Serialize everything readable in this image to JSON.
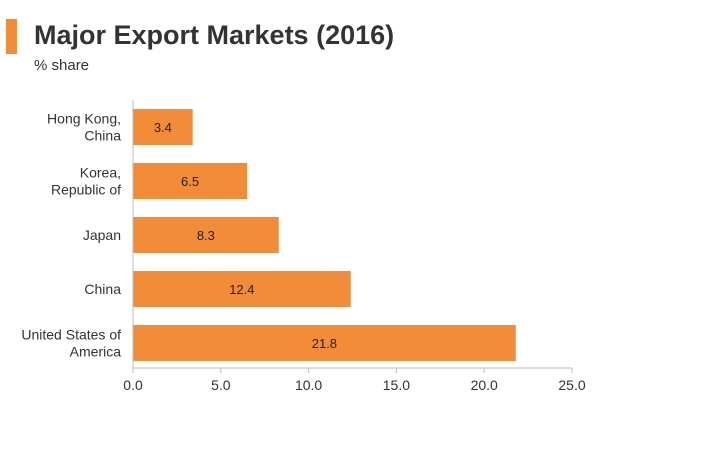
{
  "header": {
    "accent_color": "#f28c38"
  },
  "chart_data": {
    "type": "bar",
    "orientation": "horizontal",
    "title": "Major Export Markets (2016)",
    "subtitle": "% share",
    "categories": [
      [
        "Hong Kong,",
        "China"
      ],
      [
        "Korea,",
        "Republic of"
      ],
      [
        "Japan"
      ],
      [
        "China"
      ],
      [
        "United States of",
        "America"
      ]
    ],
    "values": [
      3.4,
      6.5,
      8.3,
      12.4,
      21.8
    ],
    "data_labels": [
      "3.4",
      "6.5",
      "8.3",
      "12.4",
      "21.8"
    ],
    "xlim": [
      0,
      25
    ],
    "xticks": [
      "0.0",
      "5.0",
      "10.0",
      "15.0",
      "20.0",
      "25.0"
    ],
    "bar_color": "#f28c38",
    "grid": false,
    "legend": "none"
  }
}
